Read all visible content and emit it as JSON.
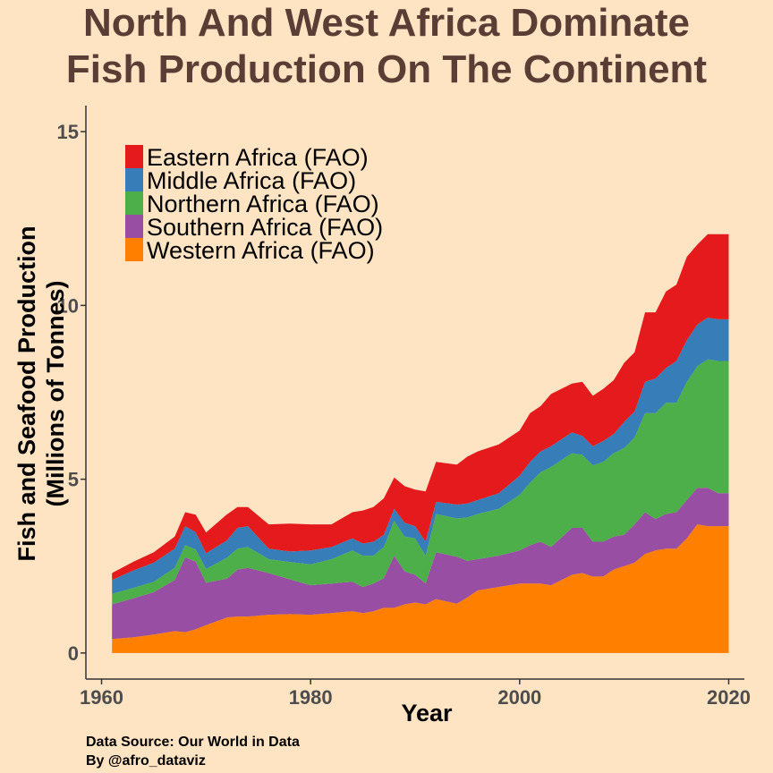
{
  "chart_data": {
    "type": "area",
    "stacked": true,
    "title": [
      "North And West Africa Dominate",
      "Fish Production On The Continent"
    ],
    "xlabel": "Year",
    "ylabel": [
      "Fish and Seafood Production",
      "(Millions of Tonnes)"
    ],
    "xlim": [
      1958.5,
      2021.5
    ],
    "ylim": [
      -0.75,
      15.75
    ],
    "xticks": [
      1960,
      1980,
      2000,
      2020
    ],
    "yticks": [
      0,
      5,
      10,
      15
    ],
    "grid": false,
    "legend_position": "top-left",
    "x": [
      1961,
      1963,
      1965,
      1967,
      1968,
      1969,
      1970,
      1972,
      1973,
      1974,
      1976,
      1978,
      1980,
      1982,
      1984,
      1985,
      1986,
      1987,
      1988,
      1989,
      1990,
      1991,
      1992,
      1994,
      1995,
      1996,
      1998,
      2000,
      2001,
      2002,
      2003,
      2005,
      2006,
      2007,
      2008,
      2009,
      2010,
      2011,
      2012,
      2013,
      2014,
      2015,
      2016,
      2017,
      2018,
      2019,
      2020
    ],
    "series": [
      {
        "name": "Western Africa (FAO)",
        "color": "#ff7f00",
        "values": [
          0.4,
          0.45,
          0.53,
          0.63,
          0.6,
          0.68,
          0.8,
          1.02,
          1.05,
          1.05,
          1.1,
          1.12,
          1.1,
          1.15,
          1.2,
          1.15,
          1.2,
          1.3,
          1.3,
          1.4,
          1.45,
          1.4,
          1.55,
          1.42,
          1.6,
          1.8,
          1.9,
          2.0,
          2.0,
          2.0,
          1.95,
          2.25,
          2.3,
          2.2,
          2.2,
          2.4,
          2.5,
          2.6,
          2.85,
          2.95,
          3.0,
          3.0,
          3.3,
          3.7,
          3.65,
          3.65,
          3.65
        ]
      },
      {
        "name": "Southern Africa (FAO)",
        "color": "#984ea3",
        "values": [
          1.0,
          1.12,
          1.22,
          1.47,
          2.15,
          1.95,
          1.22,
          1.12,
          1.35,
          1.4,
          1.2,
          1.0,
          0.85,
          0.85,
          0.85,
          0.75,
          0.8,
          0.85,
          1.5,
          0.95,
          0.8,
          0.6,
          1.35,
          1.35,
          1.05,
          0.9,
          0.9,
          0.95,
          1.1,
          1.2,
          1.1,
          1.35,
          1.3,
          1.0,
          1.0,
          0.95,
          0.9,
          1.1,
          1.2,
          0.9,
          1.0,
          1.05,
          1.1,
          1.05,
          1.1,
          0.95,
          0.95
        ]
      },
      {
        "name": "Northern Africa (FAO)",
        "color": "#4daf4a",
        "values": [
          0.3,
          0.3,
          0.3,
          0.35,
          0.35,
          0.35,
          0.4,
          0.6,
          0.6,
          0.6,
          0.4,
          0.5,
          0.6,
          0.7,
          0.9,
          0.9,
          0.8,
          0.9,
          1.0,
          1.0,
          1.05,
          0.8,
          1.1,
          1.1,
          1.25,
          1.3,
          1.35,
          1.6,
          1.8,
          2.0,
          2.3,
          2.15,
          2.1,
          2.2,
          2.3,
          2.4,
          2.5,
          2.5,
          2.85,
          3.05,
          3.2,
          3.15,
          3.4,
          3.5,
          3.7,
          3.8,
          3.8
        ]
      },
      {
        "name": "Middle Africa (FAO)",
        "color": "#377eb8",
        "values": [
          0.4,
          0.5,
          0.55,
          0.55,
          0.55,
          0.5,
          0.45,
          0.5,
          0.6,
          0.6,
          0.3,
          0.3,
          0.4,
          0.35,
          0.35,
          0.35,
          0.4,
          0.35,
          0.35,
          0.4,
          0.35,
          0.4,
          0.35,
          0.4,
          0.4,
          0.4,
          0.45,
          0.55,
          0.6,
          0.6,
          0.6,
          0.6,
          0.55,
          0.55,
          0.6,
          0.55,
          0.75,
          0.75,
          0.9,
          1.0,
          1.0,
          1.2,
          1.2,
          1.2,
          1.2,
          1.2,
          1.2
        ]
      },
      {
        "name": "Eastern Africa (FAO)",
        "color": "#e41a1c",
        "values": [
          0.2,
          0.25,
          0.3,
          0.35,
          0.4,
          0.5,
          0.6,
          0.75,
          0.6,
          0.55,
          0.7,
          0.8,
          0.75,
          0.65,
          0.75,
          0.95,
          1.0,
          1.05,
          0.9,
          1.05,
          1.05,
          1.45,
          1.15,
          1.15,
          1.35,
          1.4,
          1.4,
          1.3,
          1.4,
          1.3,
          1.5,
          1.4,
          1.55,
          1.45,
          1.5,
          1.55,
          1.7,
          1.7,
          2.0,
          1.9,
          2.2,
          2.2,
          2.4,
          2.3,
          2.4,
          2.45,
          2.45
        ]
      }
    ]
  },
  "caption": {
    "line1": "Data Source: Our World in Data",
    "line2": "By @afro_dataviz"
  }
}
